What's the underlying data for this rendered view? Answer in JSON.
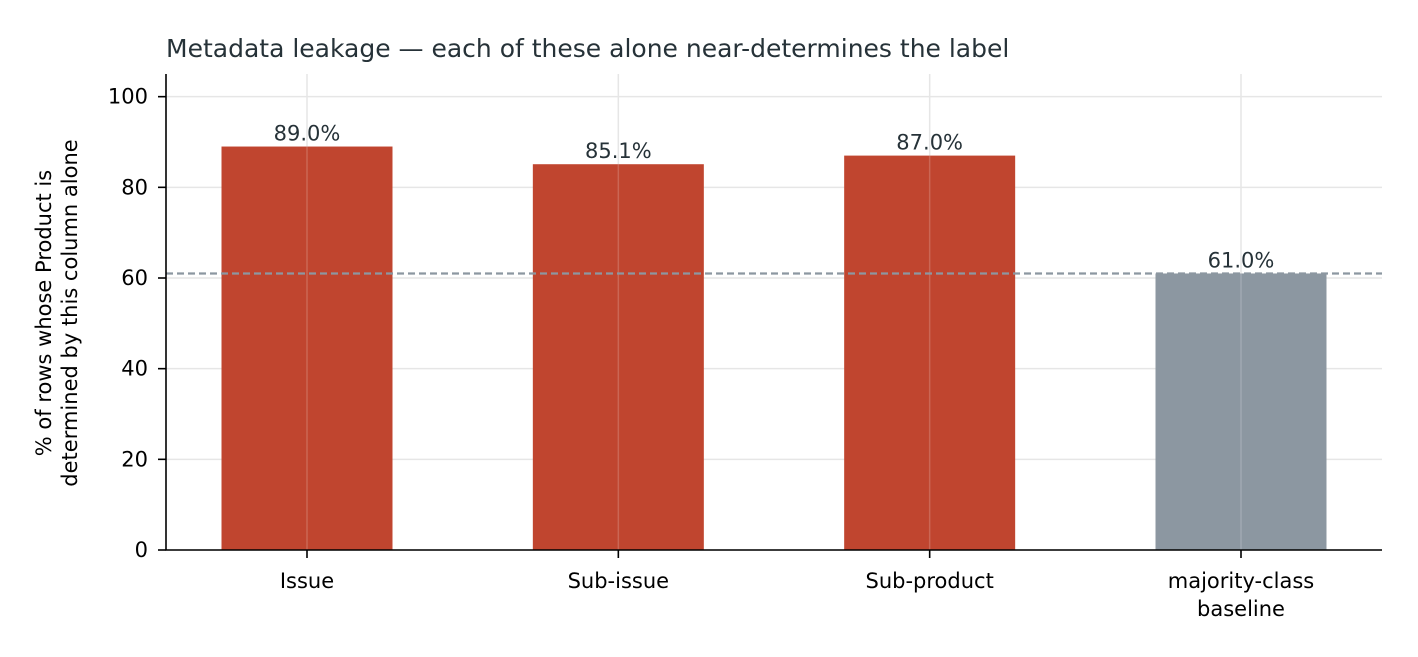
{
  "chart_data": {
    "type": "bar",
    "title": "Metadata leakage — each of these alone near-determines the label",
    "xlabel": "",
    "ylabel": [
      "% of rows whose Product is",
      "determined by this column alone"
    ],
    "categories": [
      [
        "Issue"
      ],
      [
        "Sub-issue"
      ],
      [
        "Sub-product"
      ],
      [
        "majority-class",
        "baseline"
      ]
    ],
    "values": [
      89.0,
      85.1,
      87.0,
      61.0
    ],
    "value_labels": [
      "89.0%",
      "85.1%",
      "87.0%",
      "61.0%"
    ],
    "bar_colors": [
      "#c0452f",
      "#c0452f",
      "#c0452f",
      "#8c97a1"
    ],
    "ylim": [
      0,
      105
    ],
    "yticks": [
      0,
      20,
      40,
      60,
      80,
      100
    ],
    "reference_line": {
      "value": 61.0,
      "style": "dashed",
      "color": "#8c97a1"
    },
    "grid": true,
    "legend": "none"
  }
}
